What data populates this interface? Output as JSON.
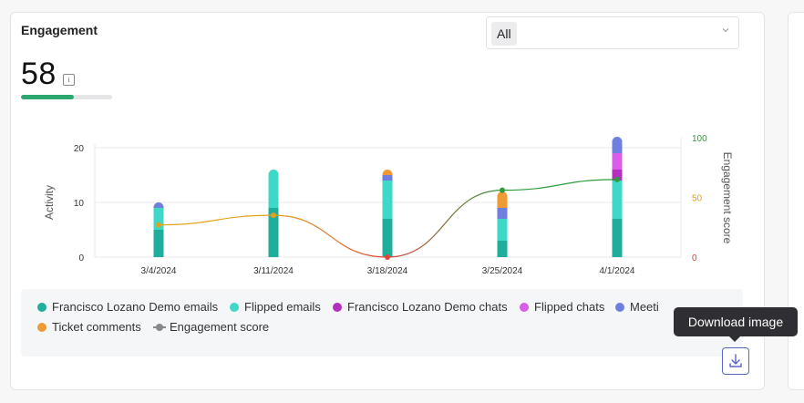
{
  "card": {
    "title": "Engagement"
  },
  "filter": {
    "selected": "All"
  },
  "score": {
    "value": "58",
    "info": "i",
    "progress": 0.58
  },
  "colors": {
    "fl_emails": "#1fae9b",
    "flipped_emails": "#3fd8c8",
    "fl_chats": "#b32fc0",
    "flipped_chats": "#d95de8",
    "meetings": "#6f7fe0",
    "ticket_comments": "#ef9a35",
    "engagement_score": "#888888"
  },
  "chart_data": {
    "type": "bar",
    "categories": [
      "3/4/2024",
      "3/11/2024",
      "3/18/2024",
      "3/25/2024",
      "4/1/2024"
    ],
    "ylabel": "Activity",
    "y2label": "Engagement score",
    "ylim": [
      0,
      20
    ],
    "y2lim": [
      0,
      100
    ],
    "yticks": [
      "0",
      "10",
      "20"
    ],
    "y2ticks": [
      "0",
      "50",
      "100"
    ],
    "stacked": true,
    "series": [
      {
        "name": "Francisco Lozano Demo emails",
        "color": "#1fae9b",
        "values": [
          5,
          9,
          7,
          3,
          7
        ]
      },
      {
        "name": "Flipped emails",
        "color": "#3fd8c8",
        "values": [
          4,
          7,
          7,
          4,
          7
        ]
      },
      {
        "name": "Francisco Lozano Demo chats",
        "color": "#b32fc0",
        "values": [
          0,
          0,
          0,
          0,
          2
        ]
      },
      {
        "name": "Flipped chats",
        "color": "#d95de8",
        "values": [
          0,
          0,
          0,
          0,
          3
        ]
      },
      {
        "name": "Meetings",
        "color": "#6f7fe0",
        "values": [
          1,
          0,
          1,
          2,
          3
        ]
      },
      {
        "name": "Ticket comments",
        "color": "#ef9a35",
        "values": [
          0,
          0,
          1,
          3,
          0
        ]
      }
    ],
    "line_series": {
      "name": "Engagement score",
      "values": [
        27,
        35,
        0,
        56,
        65
      ]
    }
  },
  "legend": {
    "items": [
      {
        "label": "Francisco Lozano Demo emails",
        "color": "#1fae9b"
      },
      {
        "label": "Flipped emails",
        "color": "#3fd8c8"
      },
      {
        "label": "Francisco Lozano Demo chats",
        "color": "#b32fc0"
      },
      {
        "label": "Flipped chats",
        "color": "#d95de8"
      },
      {
        "label": "Meeti",
        "color": "#6f7fe0"
      },
      {
        "label": "Ticket comments",
        "color": "#ef9a35"
      },
      {
        "label": "Engagement score",
        "color": "#888888"
      }
    ]
  },
  "tooltip": {
    "text": "Download image"
  },
  "icons": {
    "download": "download-icon",
    "chevron": "chevron-down-icon",
    "info": "info-icon"
  }
}
